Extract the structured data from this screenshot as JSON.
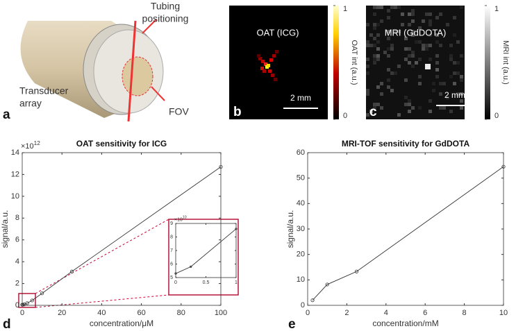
{
  "panels": [
    {
      "letter": "a",
      "labels": {
        "tubing": [
          "Tubing",
          "positioning"
        ],
        "transducer": [
          "Transducer",
          "array"
        ],
        "fov": "FOV"
      }
    },
    {
      "letter": "b",
      "title": "OAT (ICG)",
      "scale_bar": "2 mm",
      "colorbar": {
        "label": "OAT int (a.u.)",
        "ticks": [
          0,
          1
        ]
      }
    },
    {
      "letter": "c",
      "title": "MRI (GdDOTA)",
      "scale_bar": "2 mm",
      "colorbar": {
        "label": "MRI int (a.u.)",
        "ticks": [
          0,
          1
        ]
      }
    }
  ],
  "chart_data": [
    {
      "type": "line",
      "panel_label": "d",
      "title": "OAT sensitivity for ICG",
      "xlabel": "concentration/μM",
      "ylabel": "signal/a.u.",
      "x": [
        0,
        0.25,
        1,
        2.5,
        5,
        10,
        25,
        100
      ],
      "series": [
        {
          "color": "#333333",
          "values": [
            53000000000,
            58000000000,
            86000000000,
            200000000000,
            450000000000,
            1100000000000,
            3100000000000,
            12700000000000
          ]
        }
      ],
      "xlim": [
        0,
        100
      ],
      "xticks": [
        0,
        20,
        40,
        60,
        80,
        100
      ],
      "ylim": [
        0,
        14000000000000
      ],
      "yticks": [
        0,
        {
          "value": 2000000000000,
          "label": "2"
        },
        {
          "value": 4000000000000,
          "label": "4"
        },
        {
          "value": 6000000000000,
          "label": "6"
        },
        {
          "value": 8000000000000,
          "label": "8"
        },
        {
          "value": 10000000000000,
          "label": "10"
        },
        {
          "value": 12000000000000,
          "label": "12"
        },
        {
          "value": 14000000000000,
          "label": "14"
        }
      ],
      "y_exponent": {
        "base": "×10",
        "power": "12"
      }
    },
    {
      "type": "line",
      "x": [
        0,
        0.25,
        1
      ],
      "series": [
        {
          "color": "#333333",
          "values": [
            53000000000,
            58000000000,
            86000000000
          ]
        }
      ],
      "xlim": [
        0,
        1
      ],
      "xticks": [
        0,
        0.5,
        1
      ],
      "ylim": [
        50000000000,
        90000000000
      ],
      "yticks": [
        {
          "value": 50000000000,
          "label": "5"
        },
        {
          "value": 60000000000,
          "label": "6"
        },
        {
          "value": 70000000000,
          "label": "7"
        },
        {
          "value": 80000000000,
          "label": "8"
        },
        {
          "value": 90000000000,
          "label": "9"
        }
      ],
      "y_exponent": {
        "base": "×10",
        "power": "10"
      }
    },
    {
      "type": "line",
      "panel_label": "e",
      "title": "MRI-TOF sensitivity for GdDOTA",
      "xlabel": "concentration/mM",
      "ylabel": "signal/a.u.",
      "x": [
        0.25,
        1,
        2.5,
        10
      ],
      "series": [
        {
          "color": "#333333",
          "values": [
            2,
            8.2,
            13.3,
            54.5
          ]
        }
      ],
      "xlim": [
        0,
        10
      ],
      "xticks": [
        0,
        2,
        4,
        6,
        8,
        10
      ],
      "ylim": [
        0,
        60
      ],
      "yticks": [
        0,
        10,
        20,
        30,
        40,
        50,
        60
      ]
    }
  ]
}
